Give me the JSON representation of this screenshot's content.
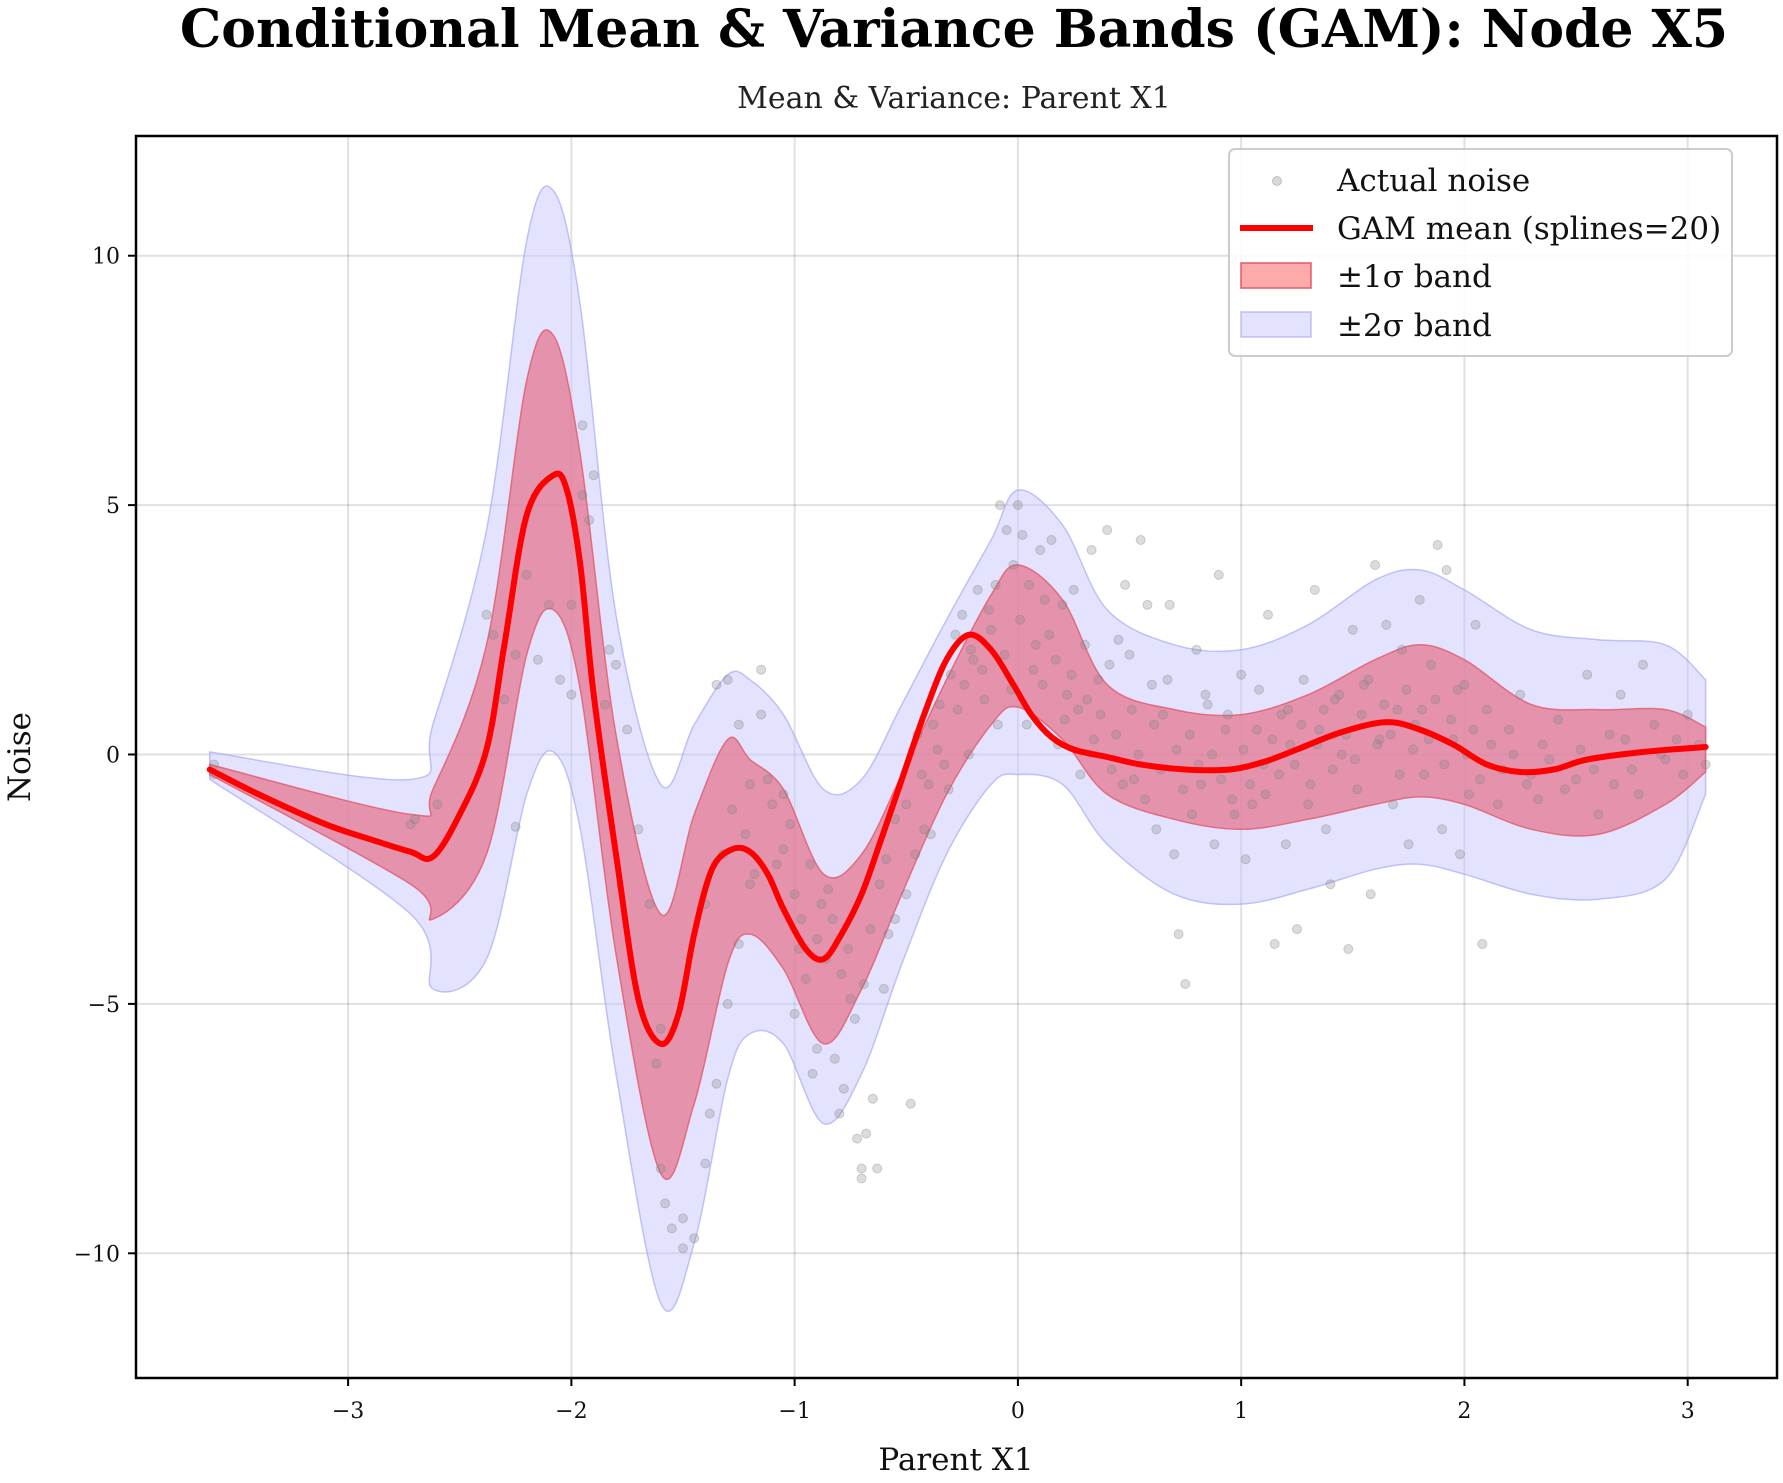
{
  "colors": {
    "mean_line": "#ff0000",
    "band1_fill": "#e6718a",
    "band1_edge": "#e05a6a",
    "band2_fill": "#c8c8ff",
    "band2_edge": "#9f9ff5",
    "points": "#808080",
    "grid": "#d9d9d9",
    "axes": "#000000"
  },
  "chart_data": {
    "type": "line",
    "title": "Conditional Mean & Variance Bands (GAM): Node X5",
    "subtitle": "Mean & Variance: Parent X1",
    "xlabel": "Parent X1",
    "ylabel": "Noise",
    "xlim": [
      -3.95,
      3.4
    ],
    "ylim": [
      -12.5,
      12.4
    ],
    "xticks": [
      -3,
      -2,
      -1,
      0,
      1,
      2,
      3
    ],
    "yticks": [
      -10,
      -5,
      0,
      5,
      10
    ],
    "xtick_labels": [
      "−3",
      "−2",
      "−1",
      "0",
      "1",
      "2",
      "3"
    ],
    "ytick_labels": [
      "−10",
      "−5",
      "0",
      "5",
      "10"
    ],
    "grid": true,
    "legend_position": "top-right",
    "legend": [
      {
        "label": "Actual noise",
        "kind": "points"
      },
      {
        "label": "GAM mean (splines=20)",
        "kind": "line"
      },
      {
        "label": "±1σ band",
        "kind": "band1"
      },
      {
        "label": "±2σ band",
        "kind": "band2"
      }
    ],
    "mean": {
      "x": [
        -3.62,
        -3.4,
        -3.1,
        -2.9,
        -2.72,
        -2.62,
        -2.5,
        -2.38,
        -2.3,
        -2.2,
        -2.08,
        -2.02,
        -1.96,
        -1.9,
        -1.8,
        -1.7,
        -1.6,
        -1.52,
        -1.45,
        -1.37,
        -1.28,
        -1.2,
        -1.12,
        -1.05,
        -0.95,
        -0.87,
        -0.79,
        -0.7,
        -0.62,
        -0.52,
        -0.42,
        -0.32,
        -0.22,
        -0.12,
        -0.02,
        0.06,
        0.15,
        0.25,
        0.4,
        0.55,
        0.75,
        0.95,
        1.1,
        1.25,
        1.45,
        1.65,
        1.8,
        1.95,
        2.1,
        2.25,
        2.4,
        2.55,
        2.8,
        3.08
      ],
      "y": [
        -0.3,
        -0.8,
        -1.4,
        -1.7,
        -1.95,
        -2.05,
        -1.2,
        0.1,
        2.2,
        4.8,
        5.6,
        5.3,
        3.8,
        1.2,
        -2.0,
        -4.9,
        -5.8,
        -5.2,
        -3.6,
        -2.3,
        -1.9,
        -1.95,
        -2.4,
        -3.1,
        -3.9,
        -4.1,
        -3.6,
        -2.8,
        -1.8,
        -0.5,
        0.8,
        1.9,
        2.4,
        2.1,
        1.4,
        0.8,
        0.35,
        0.1,
        -0.05,
        -0.2,
        -0.3,
        -0.3,
        -0.15,
        0.1,
        0.45,
        0.65,
        0.5,
        0.2,
        -0.2,
        -0.35,
        -0.3,
        -0.1,
        0.05,
        0.15
      ]
    },
    "band_1sigma": {
      "x": [
        -3.62,
        -2.72,
        -2.62,
        -2.38,
        -2.2,
        -2.08,
        -1.96,
        -1.8,
        -1.6,
        -1.45,
        -1.3,
        -1.2,
        -1.05,
        -0.87,
        -0.7,
        -0.52,
        -0.32,
        -0.12,
        0.0,
        0.2,
        0.4,
        0.7,
        1.0,
        1.3,
        1.6,
        1.8,
        2.0,
        2.3,
        2.6,
        2.9,
        3.08
      ],
      "lower": [
        -0.4,
        -2.6,
        -3.3,
        -2.0,
        2.0,
        2.9,
        1.3,
        -4.0,
        -8.4,
        -7.0,
        -4.2,
        -3.6,
        -4.3,
        -5.8,
        -4.7,
        -2.8,
        -0.8,
        0.6,
        0.95,
        0.3,
        -0.8,
        -1.3,
        -1.5,
        -1.3,
        -1.0,
        -0.85,
        -1.0,
        -1.5,
        -1.6,
        -1.0,
        -0.35
      ],
      "upper": [
        -0.2,
        -1.2,
        -0.7,
        2.2,
        7.5,
        8.4,
        6.0,
        0.4,
        -3.2,
        -1.2,
        0.3,
        -0.1,
        -0.7,
        -2.4,
        -2.0,
        -0.4,
        1.5,
        3.2,
        3.8,
        3.1,
        1.4,
        0.9,
        0.8,
        1.2,
        1.9,
        2.2,
        1.9,
        1.0,
        0.9,
        0.9,
        0.55
      ]
    },
    "band_2sigma": {
      "x": [
        -3.62,
        -2.72,
        -2.62,
        -2.38,
        -2.2,
        -2.08,
        -1.96,
        -1.8,
        -1.6,
        -1.45,
        -1.3,
        -1.2,
        -1.05,
        -0.87,
        -0.7,
        -0.52,
        -0.32,
        -0.12,
        0.0,
        0.2,
        0.4,
        0.7,
        1.0,
        1.3,
        1.6,
        1.8,
        2.0,
        2.3,
        2.6,
        2.9,
        3.08
      ],
      "lower": [
        -0.5,
        -3.2,
        -4.7,
        -4.1,
        -0.8,
        0.05,
        -1.5,
        -6.4,
        -11.0,
        -9.8,
        -6.5,
        -5.6,
        -5.8,
        -7.4,
        -6.4,
        -4.2,
        -2.0,
        -0.6,
        -0.4,
        -0.6,
        -1.8,
        -2.8,
        -3.0,
        -2.7,
        -2.3,
        -2.2,
        -2.4,
        -2.8,
        -2.9,
        -2.5,
        -0.8
      ],
      "upper": [
        0.05,
        -0.5,
        0.6,
        4.5,
        10.3,
        11.3,
        9.0,
        2.8,
        -0.6,
        0.6,
        1.6,
        1.5,
        0.8,
        -0.7,
        -0.5,
        1.0,
        2.7,
        4.3,
        5.3,
        4.6,
        2.9,
        2.2,
        2.1,
        2.6,
        3.5,
        3.7,
        3.3,
        2.5,
        2.3,
        2.2,
        1.5
      ]
    },
    "points": [
      [
        -3.6,
        -0.2
      ],
      [
        -3.6,
        -0.4
      ],
      [
        -2.72,
        -1.4
      ],
      [
        -2.7,
        -1.3
      ],
      [
        -2.6,
        -1.0
      ],
      [
        -2.38,
        2.8
      ],
      [
        -2.35,
        2.4
      ],
      [
        -2.3,
        1.1
      ],
      [
        -2.25,
        2.0
      ],
      [
        -2.25,
        -1.45
      ],
      [
        -2.2,
        3.6
      ],
      [
        -2.15,
        1.9
      ],
      [
        -2.1,
        3.0
      ],
      [
        -2.05,
        1.5
      ],
      [
        -2.0,
        1.2
      ],
      [
        -2.0,
        3.0
      ],
      [
        -1.95,
        6.6
      ],
      [
        -1.95,
        5.2
      ],
      [
        -1.92,
        4.7
      ],
      [
        -1.9,
        5.6
      ],
      [
        -1.85,
        1.0
      ],
      [
        -1.83,
        2.1
      ],
      [
        -1.8,
        1.8
      ],
      [
        -1.75,
        0.5
      ],
      [
        -1.7,
        -1.5
      ],
      [
        -1.65,
        -3.0
      ],
      [
        -1.6,
        -5.5
      ],
      [
        -1.62,
        -6.2
      ],
      [
        -1.6,
        -8.3
      ],
      [
        -1.58,
        -9.0
      ],
      [
        -1.55,
        -9.5
      ],
      [
        -1.5,
        -9.9
      ],
      [
        -1.5,
        -9.3
      ],
      [
        -1.45,
        -9.7
      ],
      [
        -1.4,
        -8.2
      ],
      [
        -1.38,
        -7.2
      ],
      [
        -1.35,
        -6.6
      ],
      [
        -1.3,
        -5.0
      ],
      [
        -1.25,
        -3.8
      ],
      [
        -1.2,
        -2.6
      ],
      [
        -1.35,
        1.4
      ],
      [
        -1.3,
        1.5
      ],
      [
        -1.25,
        0.6
      ],
      [
        -1.2,
        -0.6
      ],
      [
        -1.15,
        1.7
      ],
      [
        -1.15,
        0.8
      ],
      [
        -1.1,
        -1.0
      ],
      [
        -1.05,
        -1.9
      ],
      [
        -1.05,
        -0.8
      ],
      [
        -1.0,
        -2.8
      ],
      [
        -1.0,
        -5.2
      ],
      [
        -0.98,
        -3.9
      ],
      [
        -0.95,
        -4.5
      ],
      [
        -0.92,
        -6.4
      ],
      [
        -0.9,
        -5.9
      ],
      [
        -0.88,
        -3.0
      ],
      [
        -0.85,
        -2.7
      ],
      [
        -0.82,
        -6.1
      ],
      [
        -0.8,
        -7.2
      ],
      [
        -0.78,
        -6.7
      ],
      [
        -0.75,
        -4.9
      ],
      [
        -0.72,
        -7.7
      ],
      [
        -0.7,
        -8.3
      ],
      [
        -0.7,
        -8.5
      ],
      [
        -0.68,
        -7.6
      ],
      [
        -0.65,
        -6.9
      ],
      [
        -0.63,
        -8.3
      ],
      [
        -0.6,
        -4.7
      ],
      [
        -0.58,
        -3.6
      ],
      [
        -0.55,
        -1.3
      ],
      [
        -0.55,
        -3.3
      ],
      [
        -0.5,
        -2.8
      ],
      [
        -0.5,
        -1.0
      ],
      [
        -0.48,
        -7.0
      ],
      [
        -0.45,
        0.4
      ],
      [
        -0.42,
        -1.5
      ],
      [
        -0.4,
        -0.6
      ],
      [
        -0.38,
        0.6
      ],
      [
        -0.35,
        1.0
      ],
      [
        -0.33,
        -0.2
      ],
      [
        -0.3,
        1.6
      ],
      [
        -0.28,
        2.4
      ],
      [
        -0.25,
        2.8
      ],
      [
        -0.22,
        0.0
      ],
      [
        -0.2,
        1.9
      ],
      [
        -0.18,
        3.3
      ],
      [
        -0.15,
        1.1
      ],
      [
        -0.12,
        2.5
      ],
      [
        -0.1,
        3.4
      ],
      [
        -0.08,
        5.0
      ],
      [
        -0.05,
        4.5
      ],
      [
        -0.02,
        3.8
      ],
      [
        0.0,
        5.0
      ],
      [
        0.02,
        4.4
      ],
      [
        0.05,
        3.4
      ],
      [
        0.08,
        2.2
      ],
      [
        0.1,
        4.1
      ],
      [
        0.12,
        3.1
      ],
      [
        0.15,
        4.3
      ],
      [
        0.18,
        0.2
      ],
      [
        0.2,
        3.0
      ],
      [
        0.22,
        1.2
      ],
      [
        0.25,
        3.3
      ],
      [
        0.28,
        -0.4
      ],
      [
        0.3,
        2.2
      ],
      [
        0.33,
        4.1
      ],
      [
        0.36,
        1.5
      ],
      [
        0.4,
        4.5
      ],
      [
        0.42,
        -0.3
      ],
      [
        0.45,
        2.3
      ],
      [
        0.48,
        3.4
      ],
      [
        0.5,
        2.0
      ],
      [
        0.52,
        -0.5
      ],
      [
        0.55,
        4.3
      ],
      [
        0.58,
        3.0
      ],
      [
        0.6,
        1.4
      ],
      [
        0.62,
        -1.5
      ],
      [
        0.65,
        0.8
      ],
      [
        0.68,
        3.0
      ],
      [
        0.7,
        -2.0
      ],
      [
        0.72,
        -3.6
      ],
      [
        0.75,
        -4.6
      ],
      [
        0.78,
        -1.2
      ],
      [
        0.8,
        2.1
      ],
      [
        0.82,
        -0.6
      ],
      [
        0.85,
        1.0
      ],
      [
        0.88,
        -1.8
      ],
      [
        0.9,
        3.6
      ],
      [
        0.93,
        0.5
      ],
      [
        0.96,
        -0.9
      ],
      [
        1.0,
        1.6
      ],
      [
        1.02,
        -2.1
      ],
      [
        1.05,
        -1.0
      ],
      [
        1.08,
        1.3
      ],
      [
        1.1,
        -0.2
      ],
      [
        1.12,
        2.8
      ],
      [
        1.15,
        -3.8
      ],
      [
        1.18,
        0.8
      ],
      [
        1.2,
        -1.8
      ],
      [
        1.22,
        0.2
      ],
      [
        1.25,
        -3.5
      ],
      [
        1.28,
        1.5
      ],
      [
        1.3,
        -1.0
      ],
      [
        1.33,
        3.3
      ],
      [
        1.35,
        0.5
      ],
      [
        1.38,
        -1.5
      ],
      [
        1.4,
        -2.6
      ],
      [
        1.42,
        1.1
      ],
      [
        1.45,
        0.0
      ],
      [
        1.48,
        -3.9
      ],
      [
        1.5,
        2.5
      ],
      [
        1.52,
        -0.7
      ],
      [
        1.55,
        1.4
      ],
      [
        1.58,
        -2.8
      ],
      [
        1.6,
        3.8
      ],
      [
        1.62,
        0.3
      ],
      [
        1.65,
        2.6
      ],
      [
        1.68,
        -1.0
      ],
      [
        1.7,
        0.9
      ],
      [
        1.72,
        2.1
      ],
      [
        1.75,
        -1.8
      ],
      [
        1.78,
        0.6
      ],
      [
        1.8,
        3.1
      ],
      [
        1.82,
        -0.4
      ],
      [
        1.85,
        1.8
      ],
      [
        1.88,
        4.2
      ],
      [
        1.9,
        -1.5
      ],
      [
        1.92,
        3.7
      ],
      [
        1.95,
        0.3
      ],
      [
        1.98,
        -2.0
      ],
      [
        2.0,
        1.4
      ],
      [
        2.02,
        -0.8
      ],
      [
        2.05,
        2.6
      ],
      [
        2.08,
        -3.8
      ],
      [
        2.1,
        0.9
      ],
      [
        2.15,
        -1.0
      ],
      [
        2.2,
        0.5
      ],
      [
        2.25,
        1.2
      ],
      [
        2.3,
        -0.4
      ],
      [
        2.35,
        0.2
      ],
      [
        2.42,
        0.7
      ],
      [
        2.5,
        -0.5
      ],
      [
        2.55,
        1.6
      ],
      [
        2.6,
        -1.2
      ],
      [
        2.65,
        0.4
      ],
      [
        2.7,
        1.2
      ],
      [
        2.75,
        -0.3
      ],
      [
        2.8,
        1.8
      ],
      [
        2.85,
        0.6
      ],
      [
        2.9,
        -0.1
      ],
      [
        2.95,
        0.3
      ],
      [
        3.0,
        0.8
      ],
      [
        3.05,
        0.2
      ],
      [
        3.08,
        -0.2
      ],
      [
        -1.4,
        -3.0
      ],
      [
        -1.32,
        -2.0
      ],
      [
        -1.28,
        -1.1
      ],
      [
        -1.22,
        -1.6
      ],
      [
        -1.18,
        -2.4
      ],
      [
        -1.12,
        -0.5
      ],
      [
        -1.08,
        -2.2
      ],
      [
        -1.02,
        -1.4
      ],
      [
        -0.97,
        -3.3
      ],
      [
        -0.93,
        -2.2
      ],
      [
        -0.9,
        -3.7
      ],
      [
        -0.86,
        -4.1
      ],
      [
        -0.83,
        -3.3
      ],
      [
        -0.79,
        -4.4
      ],
      [
        -0.76,
        -3.9
      ],
      [
        -0.73,
        -5.3
      ],
      [
        -0.69,
        -4.6
      ],
      [
        -0.66,
        -3.5
      ],
      [
        -0.62,
        -2.6
      ],
      [
        -0.59,
        -2.1
      ],
      [
        -0.46,
        -2.0
      ],
      [
        -0.43,
        -0.4
      ],
      [
        -0.39,
        -1.6
      ],
      [
        -0.36,
        0.1
      ],
      [
        -0.31,
        -0.7
      ],
      [
        -0.27,
        0.9
      ],
      [
        -0.24,
        1.4
      ],
      [
        -0.21,
        2.1
      ],
      [
        -0.16,
        1.7
      ],
      [
        -0.13,
        2.9
      ],
      [
        -0.09,
        0.6
      ],
      [
        -0.06,
        2.0
      ],
      [
        -0.03,
        1.3
      ],
      [
        0.01,
        2.7
      ],
      [
        0.04,
        0.6
      ],
      [
        0.07,
        1.7
      ],
      [
        0.11,
        1.4
      ],
      [
        0.14,
        2.4
      ],
      [
        0.17,
        1.9
      ],
      [
        0.21,
        0.7
      ],
      [
        0.24,
        1.6
      ],
      [
        0.27,
        0.9
      ],
      [
        0.31,
        1.1
      ],
      [
        0.34,
        0.3
      ],
      [
        0.37,
        0.8
      ],
      [
        0.41,
        1.8
      ],
      [
        0.44,
        0.4
      ],
      [
        0.47,
        -0.6
      ],
      [
        0.51,
        0.9
      ],
      [
        0.54,
        0.0
      ],
      [
        0.57,
        -0.9
      ],
      [
        0.61,
        0.6
      ],
      [
        0.64,
        -0.3
      ],
      [
        0.67,
        1.5
      ],
      [
        0.71,
        0.1
      ],
      [
        0.74,
        -0.7
      ],
      [
        0.77,
        0.4
      ],
      [
        0.81,
        -0.2
      ],
      [
        0.84,
        1.2
      ],
      [
        0.87,
        0.0
      ],
      [
        0.91,
        -0.5
      ],
      [
        0.94,
        0.8
      ],
      [
        0.97,
        -1.2
      ],
      [
        1.01,
        0.1
      ],
      [
        1.04,
        -0.6
      ],
      [
        1.07,
        0.5
      ],
      [
        1.11,
        -0.8
      ],
      [
        1.14,
        0.3
      ],
      [
        1.17,
        -0.4
      ],
      [
        1.21,
        0.9
      ],
      [
        1.24,
        -0.2
      ],
      [
        1.27,
        0.6
      ],
      [
        1.31,
        -0.6
      ],
      [
        1.34,
        0.2
      ],
      [
        1.37,
        0.9
      ],
      [
        1.41,
        -0.3
      ],
      [
        1.44,
        1.2
      ],
      [
        1.47,
        0.4
      ],
      [
        1.51,
        -0.1
      ],
      [
        1.54,
        0.8
      ],
      [
        1.57,
        1.5
      ],
      [
        1.61,
        0.2
      ],
      [
        1.64,
        1.0
      ],
      [
        1.67,
        0.4
      ],
      [
        1.71,
        -0.4
      ],
      [
        1.74,
        1.3
      ],
      [
        1.77,
        0.1
      ],
      [
        1.81,
        0.9
      ],
      [
        1.84,
        0.3
      ],
      [
        1.87,
        1.1
      ],
      [
        1.91,
        -0.2
      ],
      [
        1.94,
        0.7
      ],
      [
        1.97,
        1.3
      ],
      [
        2.01,
        0.0
      ],
      [
        2.04,
        0.5
      ],
      [
        2.07,
        -0.5
      ],
      [
        2.12,
        0.2
      ],
      [
        2.17,
        -0.3
      ],
      [
        2.22,
        0.0
      ],
      [
        2.28,
        -0.6
      ],
      [
        2.33,
        -0.9
      ],
      [
        2.38,
        -0.1
      ],
      [
        2.45,
        -0.7
      ],
      [
        2.52,
        0.1
      ],
      [
        2.58,
        -0.3
      ],
      [
        2.67,
        -0.6
      ],
      [
        2.72,
        0.3
      ],
      [
        2.78,
        -0.8
      ],
      [
        2.88,
        0.0
      ],
      [
        2.98,
        -0.4
      ]
    ]
  }
}
